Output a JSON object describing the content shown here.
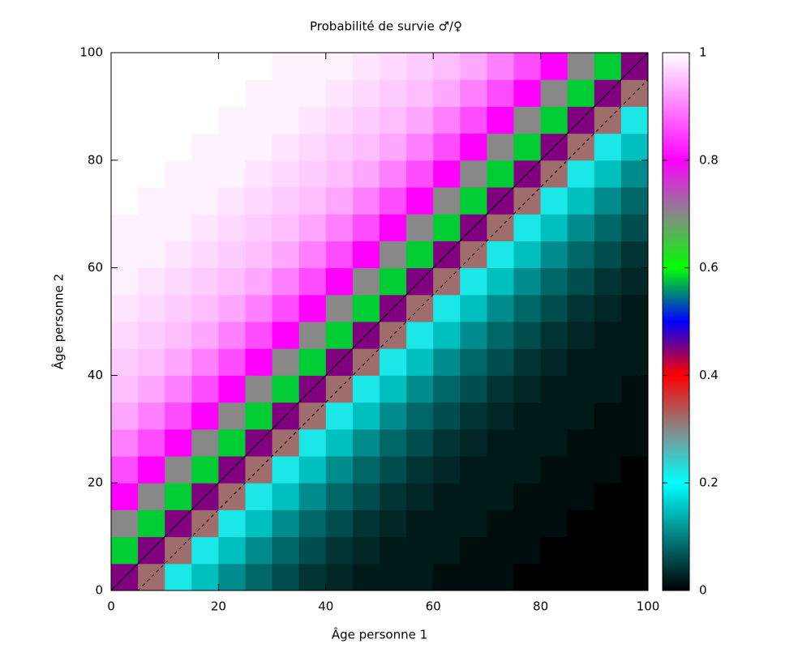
{
  "chart_data": {
    "type": "heatmap",
    "title": "Probabilité de survie ♂/♀",
    "x_label": "Âge personne 1",
    "y_label": "Âge personne 2",
    "xlim": [
      0,
      100
    ],
    "ylim": [
      0,
      100
    ],
    "xticks": [
      0,
      20,
      40,
      60,
      80,
      100
    ],
    "yticks": [
      0,
      20,
      40,
      60,
      80,
      100
    ],
    "cblim": [
      0,
      1
    ],
    "cbticks": [
      0,
      0.2,
      0.4,
      0.6,
      0.8,
      1
    ],
    "palette": [
      {
        "value": 0,
        "color": "#000000"
      },
      {
        "value": 0.2,
        "color": "#00ffff"
      },
      {
        "value": 0.3,
        "color": "#888888"
      },
      {
        "value": 0.4,
        "color": "#ff0000"
      },
      {
        "value": 0.5,
        "color": "#0000ff"
      },
      {
        "value": 0.6,
        "color": "#00ff00"
      },
      {
        "value": 0.7,
        "color": "#888888"
      },
      {
        "value": 0.8,
        "color": "#ff00ff"
      },
      {
        "value": 1,
        "color": "#ffffff"
      }
    ],
    "lines": [
      {
        "offset": 0,
        "style": "solid"
      },
      {
        "offset": -5,
        "style": "dashed"
      }
    ],
    "z": [
      [
        0.45,
        0.32,
        0.22,
        0.15,
        0.11,
        0.08,
        0.06,
        0.04,
        0.03,
        0.02,
        0.02,
        0.02,
        0.01,
        0.01,
        0.01,
        0,
        0,
        0,
        0,
        0
      ],
      [
        0.58,
        0.45,
        0.32,
        0.22,
        0.15,
        0.11,
        0.08,
        0.06,
        0.04,
        0.03,
        0.02,
        0.02,
        0.02,
        0.01,
        0.01,
        0.01,
        0,
        0,
        0,
        0
      ],
      [
        0.7,
        0.58,
        0.45,
        0.32,
        0.22,
        0.15,
        0.11,
        0.08,
        0.06,
        0.04,
        0.03,
        0.02,
        0.02,
        0.02,
        0.01,
        0.01,
        0.01,
        0,
        0,
        0
      ],
      [
        0.8,
        0.7,
        0.58,
        0.45,
        0.32,
        0.22,
        0.15,
        0.11,
        0.08,
        0.06,
        0.04,
        0.03,
        0.02,
        0.02,
        0.02,
        0.01,
        0.01,
        0.01,
        0,
        0
      ],
      [
        0.86,
        0.8,
        0.7,
        0.58,
        0.45,
        0.32,
        0.22,
        0.15,
        0.11,
        0.08,
        0.06,
        0.04,
        0.03,
        0.02,
        0.02,
        0.02,
        0.01,
        0.01,
        0.01,
        0
      ],
      [
        0.9,
        0.86,
        0.8,
        0.7,
        0.58,
        0.45,
        0.32,
        0.22,
        0.15,
        0.11,
        0.08,
        0.06,
        0.04,
        0.03,
        0.02,
        0.02,
        0.02,
        0.01,
        0.01,
        0.01
      ],
      [
        0.93,
        0.9,
        0.86,
        0.8,
        0.7,
        0.58,
        0.45,
        0.32,
        0.22,
        0.15,
        0.11,
        0.08,
        0.06,
        0.04,
        0.03,
        0.02,
        0.02,
        0.02,
        0.01,
        0.01
      ],
      [
        0.95,
        0.93,
        0.9,
        0.86,
        0.8,
        0.7,
        0.58,
        0.45,
        0.32,
        0.22,
        0.15,
        0.11,
        0.08,
        0.06,
        0.04,
        0.03,
        0.02,
        0.02,
        0.02,
        0.01
      ],
      [
        0.96,
        0.95,
        0.93,
        0.9,
        0.86,
        0.8,
        0.7,
        0.58,
        0.45,
        0.32,
        0.22,
        0.15,
        0.11,
        0.08,
        0.06,
        0.04,
        0.03,
        0.02,
        0.02,
        0.02
      ],
      [
        0.97,
        0.96,
        0.95,
        0.93,
        0.9,
        0.86,
        0.8,
        0.7,
        0.58,
        0.45,
        0.32,
        0.22,
        0.15,
        0.11,
        0.08,
        0.06,
        0.04,
        0.03,
        0.02,
        0.02
      ],
      [
        0.98,
        0.97,
        0.96,
        0.95,
        0.93,
        0.9,
        0.86,
        0.8,
        0.7,
        0.58,
        0.45,
        0.32,
        0.22,
        0.15,
        0.11,
        0.08,
        0.06,
        0.04,
        0.03,
        0.02
      ],
      [
        0.99,
        0.98,
        0.97,
        0.96,
        0.95,
        0.93,
        0.9,
        0.86,
        0.8,
        0.7,
        0.58,
        0.45,
        0.32,
        0.22,
        0.15,
        0.11,
        0.08,
        0.06,
        0.04,
        0.03
      ],
      [
        0.99,
        0.99,
        0.98,
        0.97,
        0.96,
        0.95,
        0.93,
        0.9,
        0.86,
        0.8,
        0.7,
        0.58,
        0.45,
        0.32,
        0.22,
        0.15,
        0.11,
        0.08,
        0.06,
        0.04
      ],
      [
        0.99,
        0.99,
        0.99,
        0.98,
        0.97,
        0.96,
        0.95,
        0.93,
        0.9,
        0.86,
        0.8,
        0.7,
        0.58,
        0.45,
        0.32,
        0.22,
        0.15,
        0.11,
        0.08,
        0.06
      ],
      [
        1,
        0.99,
        0.99,
        0.99,
        0.98,
        0.97,
        0.96,
        0.95,
        0.93,
        0.9,
        0.86,
        0.8,
        0.7,
        0.58,
        0.45,
        0.32,
        0.22,
        0.15,
        0.11,
        0.08
      ],
      [
        1,
        1,
        0.99,
        0.99,
        0.99,
        0.98,
        0.97,
        0.96,
        0.95,
        0.93,
        0.9,
        0.86,
        0.8,
        0.7,
        0.58,
        0.45,
        0.32,
        0.22,
        0.15,
        0.11
      ],
      [
        1,
        1,
        1,
        0.99,
        0.99,
        0.99,
        0.98,
        0.97,
        0.96,
        0.95,
        0.93,
        0.9,
        0.86,
        0.8,
        0.7,
        0.58,
        0.45,
        0.32,
        0.22,
        0.15
      ],
      [
        1,
        1,
        1,
        1,
        0.99,
        0.99,
        0.99,
        0.98,
        0.97,
        0.96,
        0.95,
        0.93,
        0.9,
        0.86,
        0.8,
        0.7,
        0.58,
        0.45,
        0.32,
        0.22
      ],
      [
        1,
        1,
        1,
        1,
        1,
        0.99,
        0.99,
        0.99,
        0.98,
        0.97,
        0.96,
        0.95,
        0.93,
        0.9,
        0.86,
        0.8,
        0.7,
        0.58,
        0.45,
        0.32
      ],
      [
        1,
        1,
        1,
        1,
        1,
        1,
        0.99,
        0.99,
        0.99,
        0.98,
        0.97,
        0.96,
        0.95,
        0.93,
        0.9,
        0.86,
        0.8,
        0.7,
        0.58,
        0.45
      ]
    ]
  }
}
